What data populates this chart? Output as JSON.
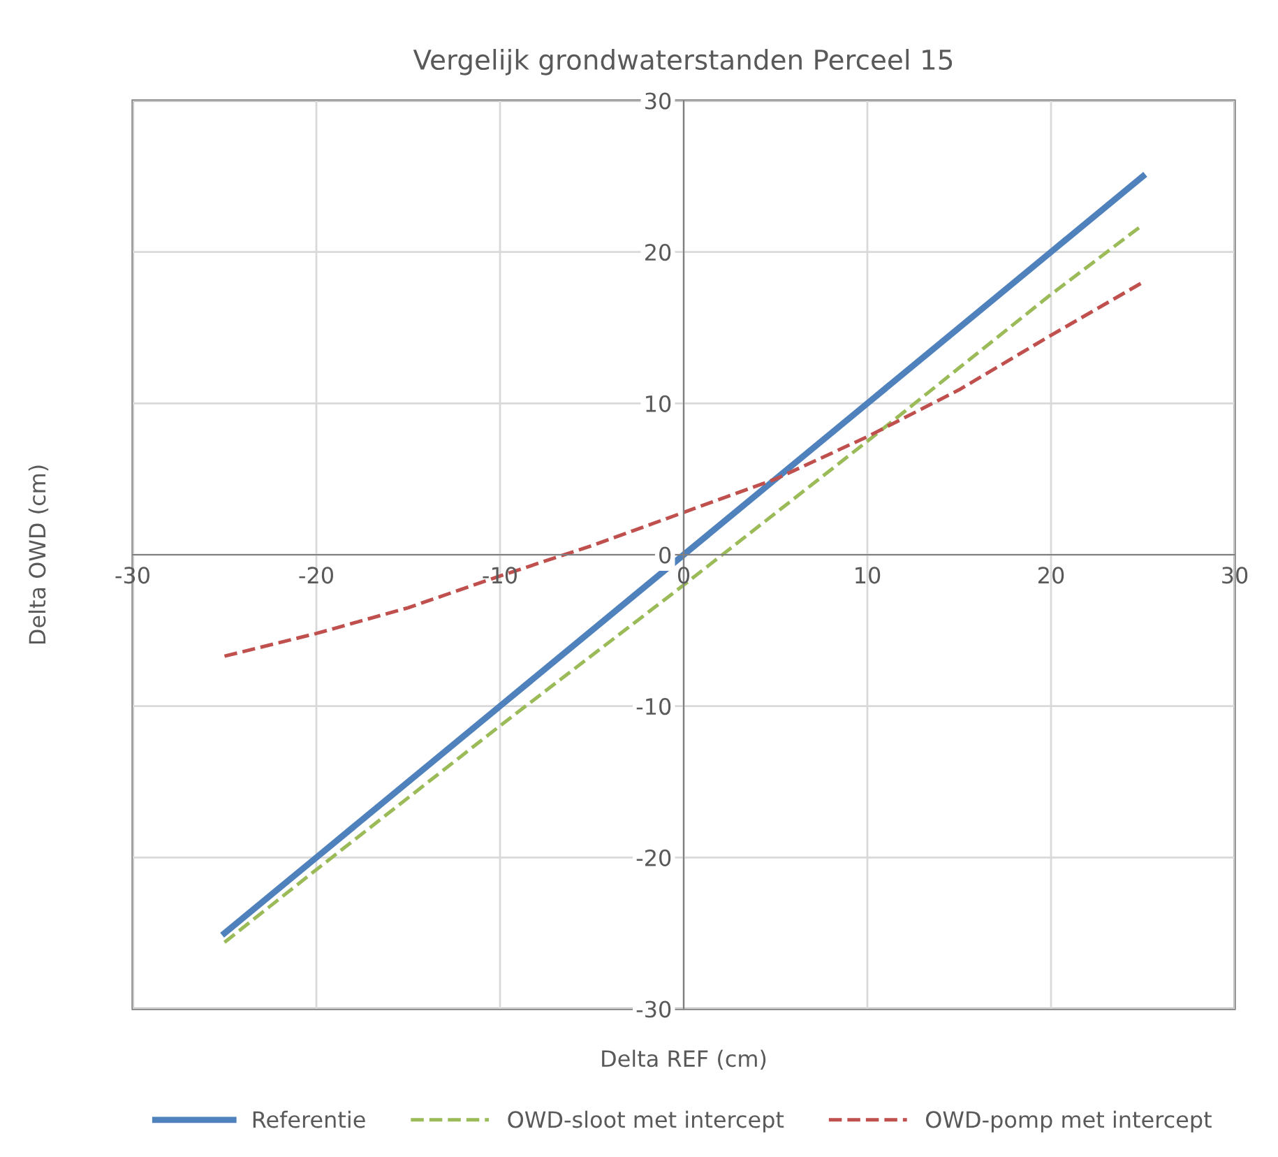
{
  "chart_data": {
    "type": "line",
    "title": "Vergelijk grondwaterstanden Perceel 15",
    "xlabel": "Delta REF (cm)",
    "ylabel": "Delta OWD (cm)",
    "xlim": [
      -30,
      30
    ],
    "ylim": [
      -30,
      30
    ],
    "xticks": [
      -30,
      -20,
      -10,
      0,
      10,
      20,
      30
    ],
    "yticks": [
      -30,
      -20,
      -10,
      0,
      10,
      20,
      30
    ],
    "grid": true,
    "legend": "bottom",
    "marker": "none",
    "series": [
      {
        "name": "Referentie",
        "color": "#4f81bd",
        "line_style": "solid",
        "x": [
          -25,
          -20,
          -10,
          0,
          10,
          20,
          25
        ],
        "values": [
          -25,
          -20,
          -10,
          0,
          10,
          20,
          25
        ]
      },
      {
        "name": "OWD-sloot met intercept",
        "color": "#9bbb59",
        "line_style": "dashed",
        "x": [
          -25,
          -20,
          -10,
          0,
          10,
          20,
          25
        ],
        "values": [
          -25.6,
          -20.8,
          -11.3,
          -2.0,
          7.5,
          17.2,
          21.8
        ]
      },
      {
        "name": "OWD-pomp met intercept",
        "color": "#c0504d",
        "line_style": "dashed",
        "x": [
          -25,
          -20,
          -15,
          -10,
          -5,
          0,
          5,
          10,
          15,
          20,
          25
        ],
        "values": [
          -6.7,
          -5.2,
          -3.5,
          -1.4,
          0.6,
          2.8,
          5.0,
          7.8,
          10.9,
          14.5,
          18.0
        ]
      }
    ]
  }
}
